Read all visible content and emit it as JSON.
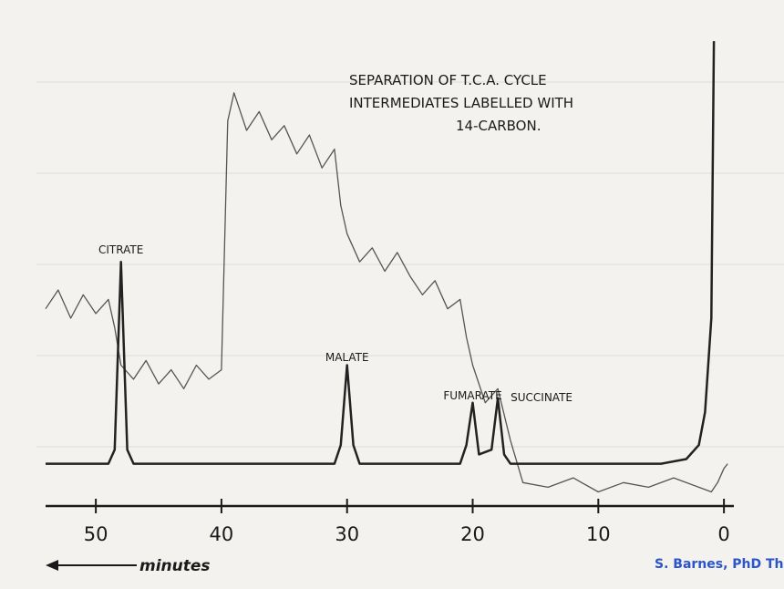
{
  "chart_data": {
    "type": "line",
    "title": [
      "SEPARATION OF T.C.A. CYCLE",
      "INTERMEDIATES LABELLED WITH",
      "14-CARBON."
    ],
    "x_label": "minutes",
    "credit": "S. Barnes, PhD Th",
    "xlim": [
      54,
      -0.5
    ],
    "xticks": [
      50,
      40,
      30,
      20,
      10,
      0
    ],
    "ylim": [
      0,
      100
    ],
    "annotations": [
      {
        "text": "CITRATE",
        "x": 48
      },
      {
        "text": "MALATE",
        "x": 30
      },
      {
        "text": "FUMARATE",
        "x": 20
      },
      {
        "text": "SUCCINATE",
        "x": 18
      }
    ],
    "series": [
      {
        "color": "#222222",
        "x": [
          54,
          49,
          48.5,
          48,
          47.5,
          47,
          31,
          30.5,
          30,
          29.5,
          29,
          21,
          20.5,
          20,
          19.5,
          18.5,
          18,
          17.5,
          17,
          5,
          3,
          2,
          1.5,
          1,
          0.8
        ],
        "values": [
          9,
          9,
          12,
          52,
          12,
          9,
          9,
          13,
          30,
          13,
          9,
          9,
          13,
          22,
          11,
          12,
          23,
          11,
          9,
          9,
          10,
          13,
          20,
          40,
          99
        ]
      },
      {
        "color": "#555555",
        "x": [
          54,
          53,
          52,
          51,
          50,
          49,
          48.5,
          48,
          47,
          46,
          45,
          44,
          43,
          42,
          41,
          40,
          39.5,
          39,
          38,
          37,
          36,
          35,
          34,
          33,
          32,
          31,
          30.5,
          30,
          29,
          28,
          27,
          26,
          25,
          24,
          23,
          22,
          21,
          20.5,
          20,
          19,
          18,
          17,
          16,
          14,
          12,
          10,
          8,
          6,
          4,
          2,
          1,
          0.5,
          0,
          -0.3
        ],
        "values": [
          42,
          46,
          40,
          45,
          41,
          44,
          38,
          30,
          27,
          31,
          26,
          29,
          25,
          30,
          27,
          29,
          82,
          88,
          80,
          84,
          78,
          81,
          75,
          79,
          72,
          76,
          64,
          58,
          52,
          55,
          50,
          54,
          49,
          45,
          48,
          42,
          44,
          36,
          30,
          22,
          25,
          14,
          5,
          4,
          6,
          3,
          5,
          4,
          6,
          4,
          3,
          5,
          8,
          9
        ]
      }
    ]
  }
}
